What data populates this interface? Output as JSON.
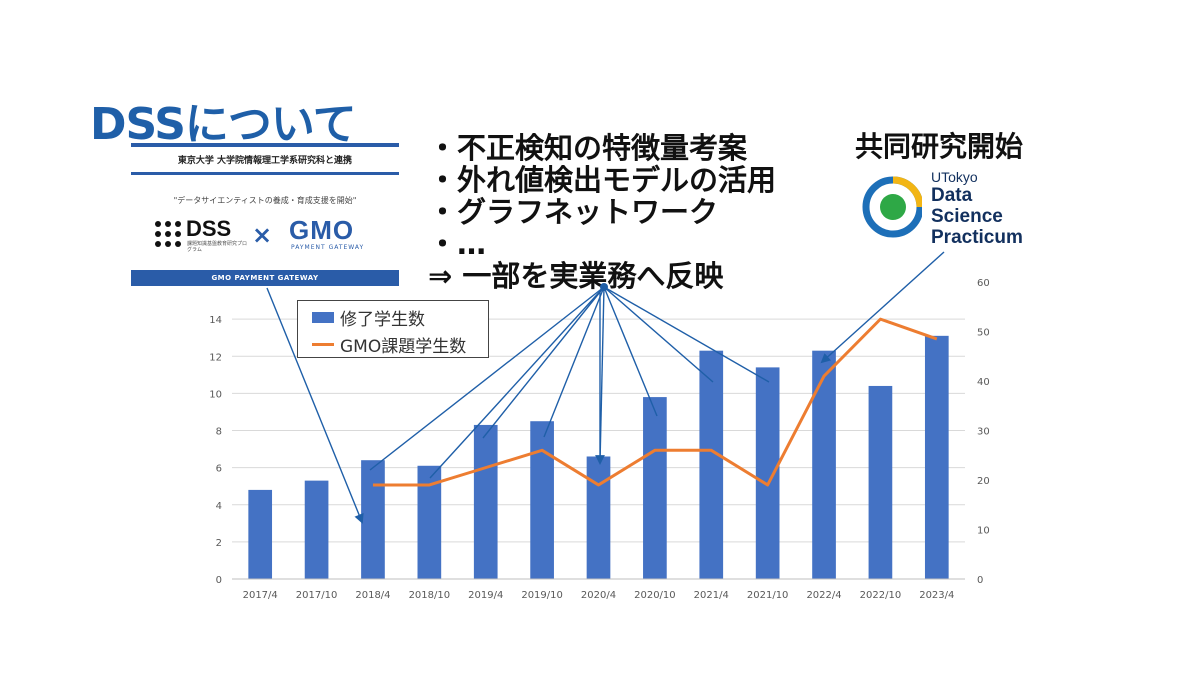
{
  "title": "DSSについて",
  "banner": {
    "heading": "東京大学 大学院情報理工学系研究科と連携",
    "subtitle": "\"データサイエンティストの養成・育成支援を開始\"",
    "dss_word": "DSS",
    "dss_small": "課題知識基盤教育研究プログラム",
    "times": "×",
    "gmo_word": "GMO",
    "gmo_small": "PAYMENT GATEWAY",
    "footer": "GMO PAYMENT GATEWAY"
  },
  "bullets": [
    "・不正検知の特徴量考案",
    "・外れ値検出モデルの活用",
    "・グラフネットワーク",
    "・…",
    "⇒ 一部を実業務へ反映"
  ],
  "joint_research": "共同研究開始",
  "utokyo_logo": {
    "line1": "UTokyo",
    "line2": "Data",
    "line3": "Science",
    "line4": "Practicum"
  },
  "colors": {
    "bar": "#4472c4",
    "line": "#ed7d31",
    "annotation": "#1f5fa8",
    "title": "#1f5fa8"
  },
  "chart_data": {
    "type": "bar",
    "categories": [
      "2017/4",
      "2017/10",
      "2018/4",
      "2018/10",
      "2019/4",
      "2019/10",
      "2020/4",
      "2020/10",
      "2021/4",
      "2021/10",
      "2022/4",
      "2022/10",
      "2023/4"
    ],
    "series": [
      {
        "name": "修了学生数",
        "type": "bar",
        "axis": "left",
        "values": [
          4.8,
          5.3,
          6.4,
          6.1,
          8.3,
          8.5,
          6.6,
          9.8,
          12.3,
          11.4,
          12.3,
          10.4,
          13.1
        ]
      },
      {
        "name": "GMO課題学生数",
        "type": "line",
        "axis": "right",
        "values": [
          null,
          null,
          19,
          19,
          22.5,
          26,
          19,
          26,
          26,
          19,
          41,
          52.5,
          48.5
        ]
      }
    ],
    "y_left": {
      "ticks": [
        "0",
        "2",
        "4",
        "6",
        "8",
        "10",
        "12",
        "14"
      ],
      "ylim": [
        0,
        16
      ]
    },
    "y_right": {
      "ticks": [
        "0",
        "10",
        "20",
        "30",
        "40",
        "50",
        "60"
      ],
      "ylim": [
        0,
        60
      ]
    },
    "grid": true,
    "legend": "top-left"
  }
}
